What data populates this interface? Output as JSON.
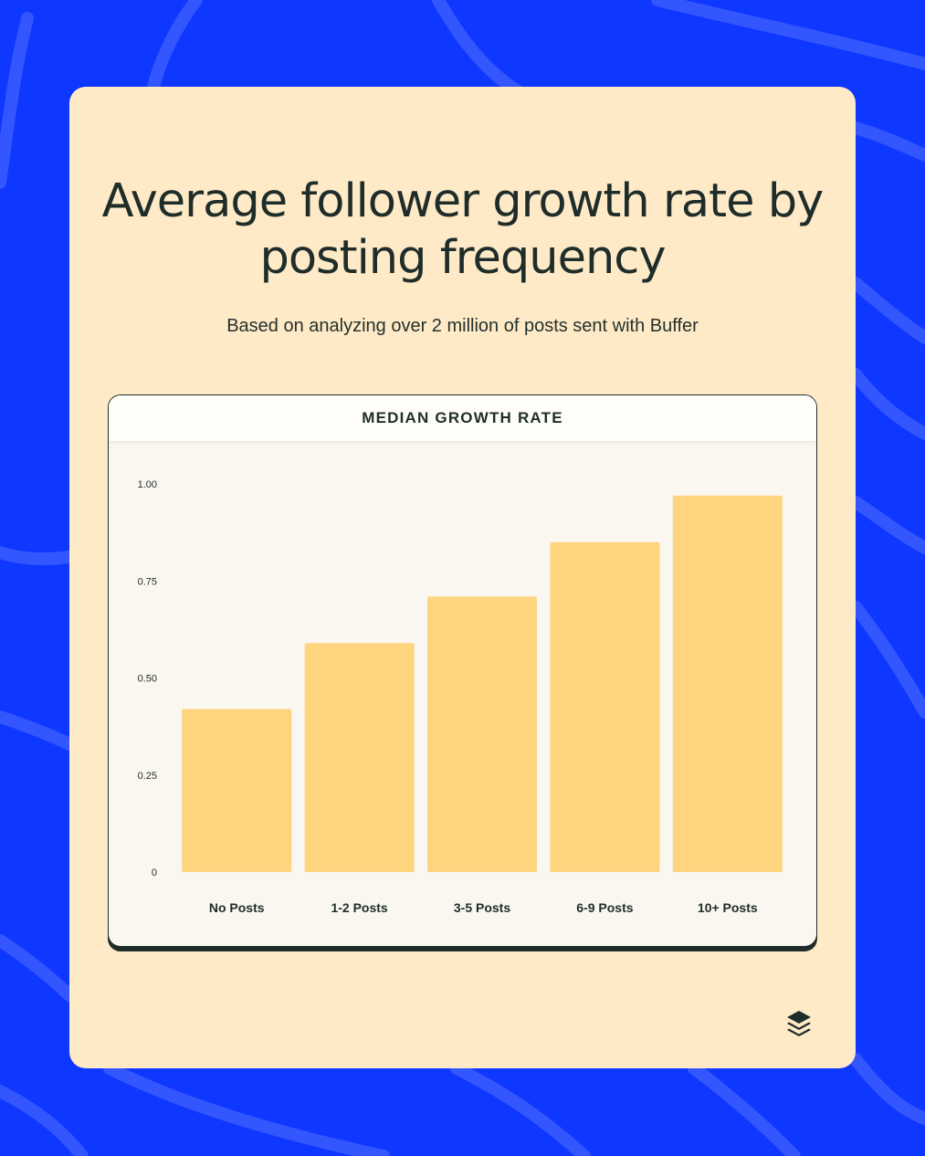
{
  "title": "Average follower growth rate by posting frequency",
  "subtitle": "Based on analyzing over 2 million of posts sent with Buffer",
  "chart_data": {
    "type": "bar",
    "title": "MEDIAN GROWTH RATE",
    "categories": [
      "No Posts",
      "1-2 Posts",
      "3-5 Posts",
      "6-9 Posts",
      "10+ Posts"
    ],
    "values": [
      0.42,
      0.59,
      0.71,
      0.85,
      0.97
    ],
    "yticks": [
      0,
      0.25,
      0.5,
      0.75,
      1.0
    ],
    "ytick_labels": [
      "0",
      "0.25",
      "0.50",
      "0.75",
      "1.00"
    ],
    "ylim": [
      0,
      1.0
    ],
    "xlabel": "",
    "ylabel": "",
    "grid": false,
    "bar_color": "#fed47e"
  },
  "colors": {
    "background": "#0e37ff",
    "card": "#feeac6",
    "text": "#1f2d2a",
    "bar": "#fed47e"
  },
  "logo": {
    "icon": "buffer-logo-icon"
  }
}
